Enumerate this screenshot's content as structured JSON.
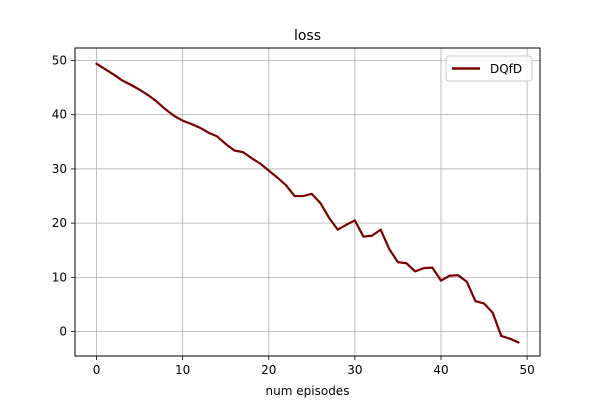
{
  "chart_data": {
    "type": "line",
    "title": "loss",
    "xlabel": "num episodes",
    "ylabel": "",
    "xlim": [
      -2.5,
      51.5
    ],
    "ylim": [
      -4.5,
      52.3
    ],
    "xticks": [
      0,
      10,
      20,
      30,
      40,
      50
    ],
    "yticks": [
      0,
      10,
      20,
      30,
      40,
      50
    ],
    "xtick_labels": [
      "0",
      "10",
      "20",
      "30",
      "40",
      "50"
    ],
    "ytick_labels": [
      "0",
      "10",
      "20",
      "30",
      "40",
      "50"
    ],
    "grid": true,
    "legend_position": "upper right",
    "series": [
      {
        "name": "DQfD",
        "color": "#7a0000",
        "x": [
          0,
          1,
          2,
          3,
          4,
          5,
          6,
          7,
          8,
          9,
          10,
          11,
          12,
          13,
          14,
          15,
          16,
          17,
          18,
          19,
          20,
          21,
          22,
          23,
          24,
          25,
          26,
          27,
          28,
          29,
          30,
          31,
          32,
          33,
          34,
          35,
          36,
          37,
          38,
          39,
          40,
          41,
          42,
          43,
          44,
          45,
          46,
          47,
          48,
          49
        ],
        "y": [
          49.4,
          48.4,
          47.4,
          46.3,
          45.5,
          44.6,
          43.6,
          42.4,
          41.0,
          39.8,
          38.9,
          38.3,
          37.6,
          36.7,
          36.0,
          34.6,
          33.4,
          33.1,
          32.0,
          31.0,
          29.7,
          28.4,
          27.0,
          25.0,
          25.0,
          25.4,
          23.7,
          21.0,
          18.8,
          19.7,
          20.5,
          17.5,
          17.7,
          18.8,
          15.2,
          12.8,
          12.6,
          11.1,
          11.7,
          11.8,
          9.4,
          10.3,
          10.4,
          9.2,
          5.6,
          5.2,
          3.5,
          -0.8,
          -1.3,
          -2.0
        ]
      }
    ]
  }
}
